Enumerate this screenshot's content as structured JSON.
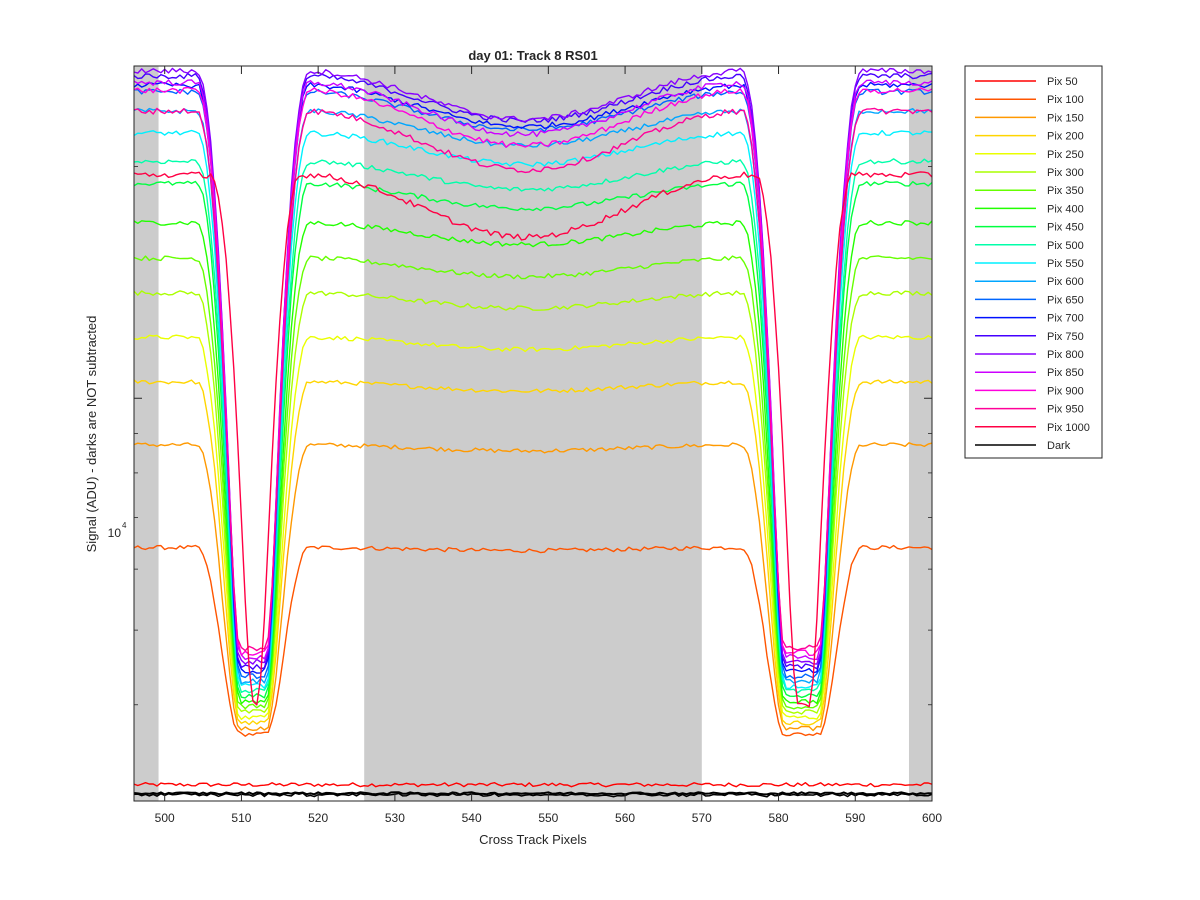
{
  "chart_data": {
    "type": "line",
    "title": "day 01: Track 8  RS01",
    "xlabel": "Cross Track Pixels",
    "ylabel": "Signal (ADU) - darks are NOT subtracted",
    "xlim": [
      496,
      600
    ],
    "ylim": [
      3000,
      27000
    ],
    "yscale": "log",
    "xticks": [
      500,
      510,
      520,
      530,
      540,
      550,
      560,
      570,
      580,
      590,
      600
    ],
    "ytick_label": {
      "base": "10",
      "exp": "4",
      "value": 10000
    },
    "grid": false,
    "legend_position": "outside-right",
    "shaded_x_bands": [
      [
        496,
        499.2
      ],
      [
        526,
        570
      ],
      [
        597,
        600
      ]
    ],
    "series": [
      {
        "name": "Pix 50",
        "color": "#ff0000",
        "plateau": 3150
      },
      {
        "name": "Pix 100",
        "color": "#ff5500",
        "plateau": 6400
      },
      {
        "name": "Pix 150",
        "color": "#ff9900",
        "plateau": 8700
      },
      {
        "name": "Pix 200",
        "color": "#ffd500",
        "plateau": 10500
      },
      {
        "name": "Pix 250",
        "color": "#eaff00",
        "plateau": 12000
      },
      {
        "name": "Pix 300",
        "color": "#aaff00",
        "plateau": 13700
      },
      {
        "name": "Pix 350",
        "color": "#66ff00",
        "plateau": 15200
      },
      {
        "name": "Pix 400",
        "color": "#22ff00",
        "plateau": 16900
      },
      {
        "name": "Pix 450",
        "color": "#00ff40",
        "plateau": 19000
      },
      {
        "name": "Pix 500",
        "color": "#00ffaa",
        "plateau": 20300
      },
      {
        "name": "Pix 550",
        "color": "#00f0ff",
        "plateau": 22100
      },
      {
        "name": "Pix 600",
        "color": "#00a6ff",
        "plateau": 23600
      },
      {
        "name": "Pix 650",
        "color": "#0066ff",
        "plateau": 25000
      },
      {
        "name": "Pix 700",
        "color": "#0011ff",
        "plateau": 25500
      },
      {
        "name": "Pix 750",
        "color": "#4400ff",
        "plateau": 26200
      },
      {
        "name": "Pix 800",
        "color": "#8800ff",
        "plateau": 26600
      },
      {
        "name": "Pix 850",
        "color": "#cc00ff",
        "plateau": 25700
      },
      {
        "name": "Pix 900",
        "color": "#ff00dd",
        "plateau": 25100
      },
      {
        "name": "Pix 950",
        "color": "#ff0099",
        "plateau": 23600
      },
      {
        "name": "Pix 1000",
        "color": "#ff0044",
        "plateau": 19500
      },
      {
        "name": "Dark",
        "color": "#000000",
        "plateau": 3070
      }
    ]
  }
}
